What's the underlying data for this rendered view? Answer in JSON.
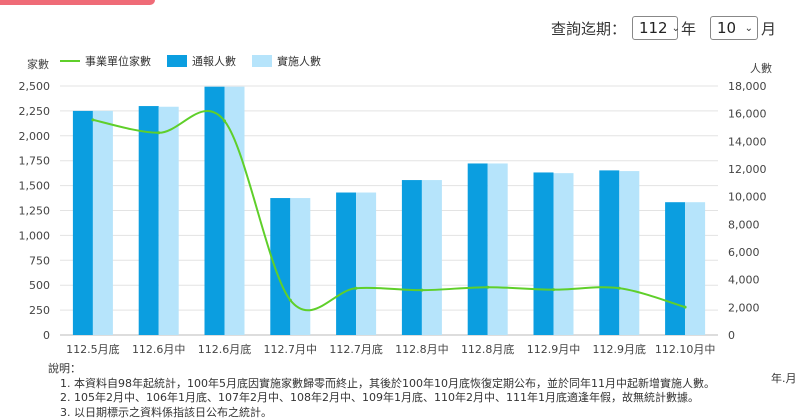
{
  "query": {
    "label": "查詢迄期：",
    "year_value": "112",
    "year_unit": "年",
    "month_value": "10",
    "month_unit": "月"
  },
  "chart_data": {
    "type": "bar",
    "left_axis_title": "家數",
    "right_axis_title": "人數",
    "x_unit": "年.月",
    "categories": [
      "112.5月底",
      "112.6月中",
      "112.6月底",
      "112.7月中",
      "112.7月底",
      "112.8月中",
      "112.8月底",
      "112.9月中",
      "112.9月底",
      "112.10月中"
    ],
    "left_ylim": [
      0,
      2500
    ],
    "left_ticks": [
      "0",
      "250",
      "500",
      "750",
      "1,000",
      "1,250",
      "1,500",
      "1,750",
      "2,000",
      "2,250",
      "2,500"
    ],
    "right_ylim": [
      0,
      18000
    ],
    "right_ticks": [
      "0",
      "2,000",
      "4,000",
      "6,000",
      "8,000",
      "10,000",
      "12,000",
      "14,000",
      "16,000",
      "18,000"
    ],
    "series": [
      {
        "name": "事業單位家數",
        "kind": "line",
        "axis": "left",
        "color": "#5fcf2a",
        "values": [
          2160,
          2030,
          2150,
          350,
          470,
          450,
          480,
          455,
          470,
          280
        ]
      },
      {
        "name": "通報人數",
        "kind": "bar",
        "axis": "right",
        "color": "#0b9ee0",
        "values": [
          16200,
          16550,
          17950,
          9900,
          10300,
          11200,
          12400,
          11750,
          11900,
          9600
        ]
      },
      {
        "name": "實施人數",
        "kind": "bar",
        "axis": "right",
        "color": "#b6e4fb",
        "values": [
          16200,
          16500,
          17950,
          9900,
          10300,
          11200,
          12400,
          11700,
          11850,
          9600
        ]
      }
    ],
    "grid": true,
    "legend": "top-left"
  },
  "notes": {
    "title": "說明：",
    "items": [
      "1. 本資料自98年起統計，100年5月底因實施家數歸零而終止，其後於100年10月底恢復定期公布，並於同年11月中起新增實施人數。",
      "2. 105年2月中、106年1月底、107年2月中、108年2月中、109年1月底、110年2月中、111年1月底適逢年假，故無統計數據。",
      "3. 以日期標示之資料係指該日公布之統計。"
    ]
  }
}
